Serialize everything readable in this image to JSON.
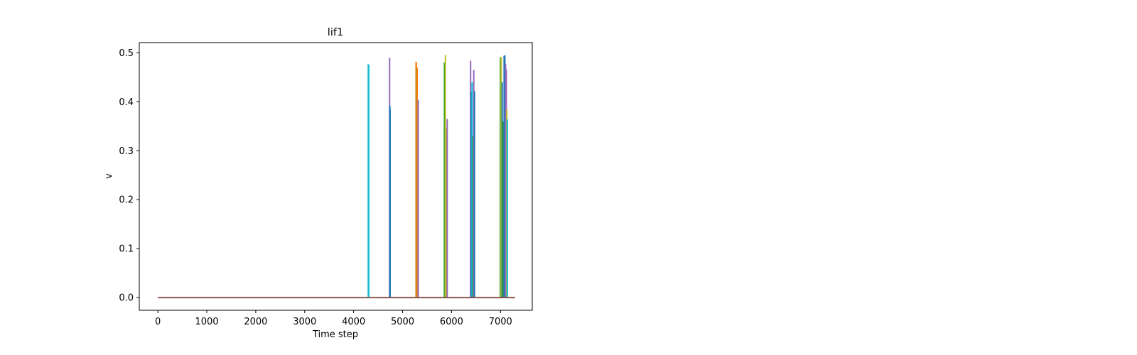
{
  "chart_data": {
    "type": "line",
    "title": "lif1",
    "xlabel": "Time step",
    "ylabel": "v",
    "xlim": [
      -380,
      7650
    ],
    "ylim": [
      -0.026,
      0.521
    ],
    "grid": false,
    "x_ticks": [
      {
        "value": 0,
        "label": "0"
      },
      {
        "value": 1000,
        "label": "1000"
      },
      {
        "value": 2000,
        "label": "2000"
      },
      {
        "value": 3000,
        "label": "3000"
      },
      {
        "value": 4000,
        "label": "4000"
      },
      {
        "value": 5000,
        "label": "5000"
      },
      {
        "value": 6000,
        "label": "6000"
      },
      {
        "value": 7000,
        "label": "7000"
      }
    ],
    "y_ticks": [
      {
        "value": 0.0,
        "label": "0.0"
      },
      {
        "value": 0.1,
        "label": "0.1"
      },
      {
        "value": 0.2,
        "label": "0.2"
      },
      {
        "value": 0.3,
        "label": "0.3"
      },
      {
        "value": 0.4,
        "label": "0.4"
      },
      {
        "value": 0.5,
        "label": "0.5"
      }
    ],
    "baseline": {
      "x_start": 0,
      "x_end": 7300,
      "value": 0.0,
      "color": "#8c564b"
    },
    "spikes": [
      {
        "x": 4300,
        "peak": 0.477,
        "color": "#17becf"
      },
      {
        "x": 4310,
        "peak": 0.475,
        "color": "#17becf"
      },
      {
        "x": 4735,
        "peak": 0.49,
        "color": "#9467bd"
      },
      {
        "x": 4740,
        "peak": 0.392,
        "color": "#1f77b4"
      },
      {
        "x": 4745,
        "peak": 0.385,
        "color": "#1f77b4"
      },
      {
        "x": 5275,
        "peak": 0.482,
        "color": "#ff7f0e"
      },
      {
        "x": 5282,
        "peak": 0.48,
        "color": "#ff7f0e"
      },
      {
        "x": 5290,
        "peak": 0.468,
        "color": "#2ca02c"
      },
      {
        "x": 5298,
        "peak": 0.47,
        "color": "#ff7f0e"
      },
      {
        "x": 5320,
        "peak": 0.404,
        "color": "#9467bd"
      },
      {
        "x": 5855,
        "peak": 0.48,
        "color": "#2ca02c"
      },
      {
        "x": 5875,
        "peak": 0.496,
        "color": "#bcbd22"
      },
      {
        "x": 5890,
        "peak": 0.345,
        "color": "#bcbd22"
      },
      {
        "x": 5912,
        "peak": 0.365,
        "color": "#9467bd"
      },
      {
        "x": 6390,
        "peak": 0.484,
        "color": "#9467bd"
      },
      {
        "x": 6400,
        "peak": 0.42,
        "color": "#1f77b4"
      },
      {
        "x": 6420,
        "peak": 0.44,
        "color": "#17becf"
      },
      {
        "x": 6440,
        "peak": 0.33,
        "color": "#2ca02c"
      },
      {
        "x": 6455,
        "peak": 0.465,
        "color": "#9467bd"
      },
      {
        "x": 6470,
        "peak": 0.422,
        "color": "#1f77b4"
      },
      {
        "x": 7000,
        "peak": 0.49,
        "color": "#2ca02c"
      },
      {
        "x": 7015,
        "peak": 0.492,
        "color": "#bcbd22"
      },
      {
        "x": 7035,
        "peak": 0.44,
        "color": "#1f77b4"
      },
      {
        "x": 7050,
        "peak": 0.36,
        "color": "#2ca02c"
      },
      {
        "x": 7075,
        "peak": 0.494,
        "color": "#1f77b4"
      },
      {
        "x": 7090,
        "peak": 0.495,
        "color": "#1f77b4"
      },
      {
        "x": 7105,
        "peak": 0.478,
        "color": "#9467bd"
      },
      {
        "x": 7120,
        "peak": 0.466,
        "color": "#9467bd"
      },
      {
        "x": 7130,
        "peak": 0.384,
        "color": "#bcbd22"
      },
      {
        "x": 7140,
        "peak": 0.364,
        "color": "#17becf"
      }
    ]
  }
}
